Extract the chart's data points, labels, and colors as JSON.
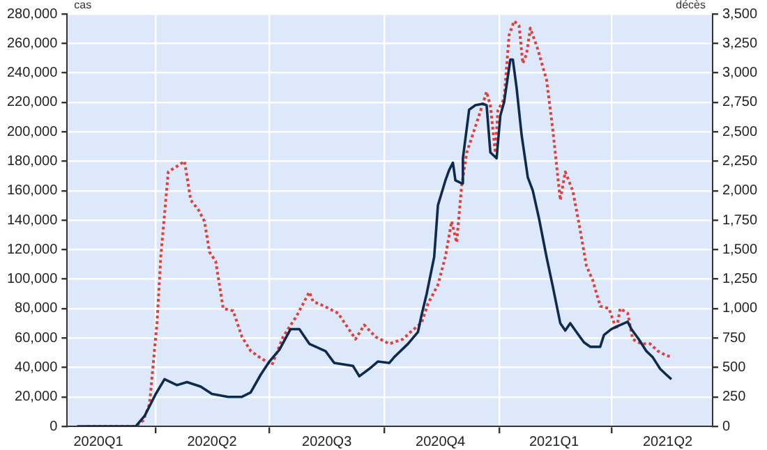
{
  "chart_data": {
    "type": "line",
    "ylabel": "cas",
    "y2label": "décès",
    "grid": true,
    "legend": false,
    "marker": "none",
    "xlim": [
      "2020-01-21",
      "2021-06-21"
    ],
    "xticks": [
      {
        "value": "2020-02-15",
        "label": "2020Q1"
      },
      {
        "value": "2020-04-01",
        "label": null
      },
      {
        "value": "2020-05-16",
        "label": "2020Q2"
      },
      {
        "value": "2020-07-01",
        "label": null
      },
      {
        "value": "2020-08-16",
        "label": "2020Q3"
      },
      {
        "value": "2020-10-01",
        "label": null
      },
      {
        "value": "2020-11-15",
        "label": "2020Q4"
      },
      {
        "value": "2021-01-01",
        "label": null
      },
      {
        "value": "2021-02-14",
        "label": "2021Q1"
      },
      {
        "value": "2021-04-01",
        "label": null
      },
      {
        "value": "2021-05-16",
        "label": "2021Q2"
      }
    ],
    "ylim": [
      0,
      280000
    ],
    "yticks": [
      0,
      {
        "value": 20000,
        "label": "20,000"
      },
      {
        "value": 40000,
        "label": "40,000"
      },
      {
        "value": 60000,
        "label": "60,000"
      },
      {
        "value": 80000,
        "label": "80,000"
      },
      {
        "value": 100000,
        "label": "100,000"
      },
      {
        "value": 120000,
        "label": "120,000"
      },
      {
        "value": 140000,
        "label": "140,000"
      },
      {
        "value": 160000,
        "label": "160,000"
      },
      {
        "value": 180000,
        "label": "180,000"
      },
      {
        "value": 200000,
        "label": "200,000"
      },
      {
        "value": 220000,
        "label": "220,000"
      },
      {
        "value": 240000,
        "label": "240,000"
      },
      {
        "value": 260000,
        "label": "260,000"
      },
      {
        "value": 280000,
        "label": "280,000"
      }
    ],
    "y2lim": [
      0,
      3500
    ],
    "y2ticks": [
      0,
      250,
      500,
      750,
      {
        "value": 1000,
        "label": "1,000"
      },
      {
        "value": 1250,
        "label": "1,250"
      },
      {
        "value": 1500,
        "label": "1,500"
      },
      {
        "value": 1750,
        "label": "1,750"
      },
      {
        "value": 2000,
        "label": "2,000"
      },
      {
        "value": 2250,
        "label": "2,250"
      },
      {
        "value": 2500,
        "label": "2,500"
      },
      {
        "value": 2750,
        "label": "2,750"
      },
      {
        "value": 3000,
        "label": "3,000"
      },
      {
        "value": 3250,
        "label": "3,250"
      },
      {
        "value": 3500,
        "label": "3,500"
      }
    ],
    "series": [
      {
        "color": "#0e2a4c",
        "line_style": "solid",
        "x": [
          "2020-01-29",
          "2020-03-16",
          "2020-03-23",
          "2020-04-01",
          "2020-04-08",
          "2020-04-18",
          "2020-04-26",
          "2020-05-07",
          "2020-05-16",
          "2020-05-29",
          "2020-06-09",
          "2020-06-16",
          "2020-06-24",
          "2020-07-01",
          "2020-07-09",
          "2020-07-18",
          "2020-07-25",
          "2020-08-02",
          "2020-08-15",
          "2020-08-22",
          "2020-09-06",
          "2020-09-11",
          "2020-09-19",
          "2020-09-26",
          "2020-10-05",
          "2020-10-09",
          "2020-10-20",
          "2020-10-28",
          "2020-10-31",
          "2020-11-04",
          "2020-11-10",
          "2020-11-13",
          "2020-11-19",
          "2020-11-22",
          "2020-11-25",
          "2020-11-27",
          "2020-12-02",
          "2020-12-03",
          "2020-12-08",
          "2020-12-13",
          "2020-12-19",
          "2020-12-22",
          "2020-12-25",
          "2020-12-30",
          "2021-01-02",
          "2021-01-05",
          "2021-01-10",
          "2021-01-12",
          "2021-01-15",
          "2021-01-19",
          "2021-01-24",
          "2021-01-28",
          "2021-02-02",
          "2021-02-08",
          "2021-02-13",
          "2021-02-19",
          "2021-02-23",
          "2021-02-27",
          "2021-03-04",
          "2021-03-10",
          "2021-03-15",
          "2021-03-23",
          "2021-03-26",
          "2021-04-01",
          "2021-04-06",
          "2021-04-14",
          "2021-04-17",
          "2021-04-23",
          "2021-04-29",
          "2021-05-04",
          "2021-05-10",
          "2021-05-15",
          "2021-05-19"
        ],
        "values": [
          0,
          0,
          7000,
          22000,
          32000,
          28000,
          30000,
          27000,
          22000,
          20000,
          20000,
          23000,
          35000,
          44000,
          52000,
          66000,
          66000,
          56000,
          51000,
          43000,
          41000,
          34000,
          39000,
          44000,
          43000,
          47000,
          56000,
          64000,
          76000,
          90000,
          115000,
          150000,
          167000,
          174000,
          179000,
          167000,
          165000,
          182000,
          215000,
          218000,
          219000,
          218000,
          186000,
          182000,
          211000,
          220000,
          249000,
          249000,
          230000,
          198000,
          169000,
          160000,
          141000,
          115000,
          95000,
          70000,
          65000,
          70000,
          64000,
          57000,
          54000,
          54000,
          62000,
          66000,
          68000,
          71000,
          66000,
          59000,
          51000,
          47000,
          39000,
          35000,
          32000
        ]
      },
      {
        "axis": "y2",
        "color": "#e0403a",
        "line_style": "dotted",
        "x": [
          "2020-02-06",
          "2020-03-16",
          "2020-03-22",
          "2020-03-27",
          "2020-04-02",
          "2020-04-05",
          "2020-04-11",
          "2020-04-20",
          "2020-04-24",
          "2020-04-29",
          "2020-05-05",
          "2020-05-10",
          "2020-05-14",
          "2020-05-19",
          "2020-05-25",
          "2020-06-02",
          "2020-06-09",
          "2020-06-16",
          "2020-06-24",
          "2020-07-03",
          "2020-07-12",
          "2020-07-23",
          "2020-08-02",
          "2020-08-05",
          "2020-08-14",
          "2020-08-25",
          "2020-09-08",
          "2020-09-15",
          "2020-09-24",
          "2020-10-05",
          "2020-10-16",
          "2020-10-22",
          "2020-10-31",
          "2020-11-05",
          "2020-11-13",
          "2020-11-19",
          "2020-11-24",
          "2020-11-28",
          "2020-12-02",
          "2020-12-06",
          "2020-12-11",
          "2020-12-16",
          "2020-12-22",
          "2020-12-25",
          "2020-12-29",
          "2020-12-31",
          "2021-01-05",
          "2021-01-09",
          "2021-01-13",
          "2021-01-17",
          "2021-01-20",
          "2021-01-23",
          "2021-01-26",
          "2021-02-01",
          "2021-02-08",
          "2021-02-13",
          "2021-02-19",
          "2021-02-23",
          "2021-03-01",
          "2021-03-06",
          "2021-03-12",
          "2021-03-17",
          "2021-03-23",
          "2021-03-30",
          "2021-04-05",
          "2021-04-08",
          "2021-04-14",
          "2021-04-18",
          "2021-04-25",
          "2021-05-02",
          "2021-05-08",
          "2021-05-15",
          "2021-05-19"
        ],
        "values": [
          0,
          0,
          50,
          190,
          880,
          1440,
          2160,
          2220,
          2250,
          1920,
          1840,
          1740,
          1480,
          1400,
          1000,
          980,
          760,
          640,
          580,
          520,
          760,
          940,
          1140,
          1060,
          1020,
          960,
          740,
          860,
          760,
          700,
          740,
          800,
          880,
          1040,
          1200,
          1440,
          1740,
          1560,
          2040,
          2320,
          2480,
          2640,
          2840,
          2720,
          2320,
          2680,
          2780,
          3320,
          3440,
          3400,
          3080,
          3160,
          3380,
          3200,
          2940,
          2520,
          1920,
          2160,
          2000,
          1720,
          1360,
          1240,
          1020,
          1000,
          820,
          1000,
          960,
          740,
          700,
          700,
          640,
          600,
          590
        ]
      }
    ]
  }
}
